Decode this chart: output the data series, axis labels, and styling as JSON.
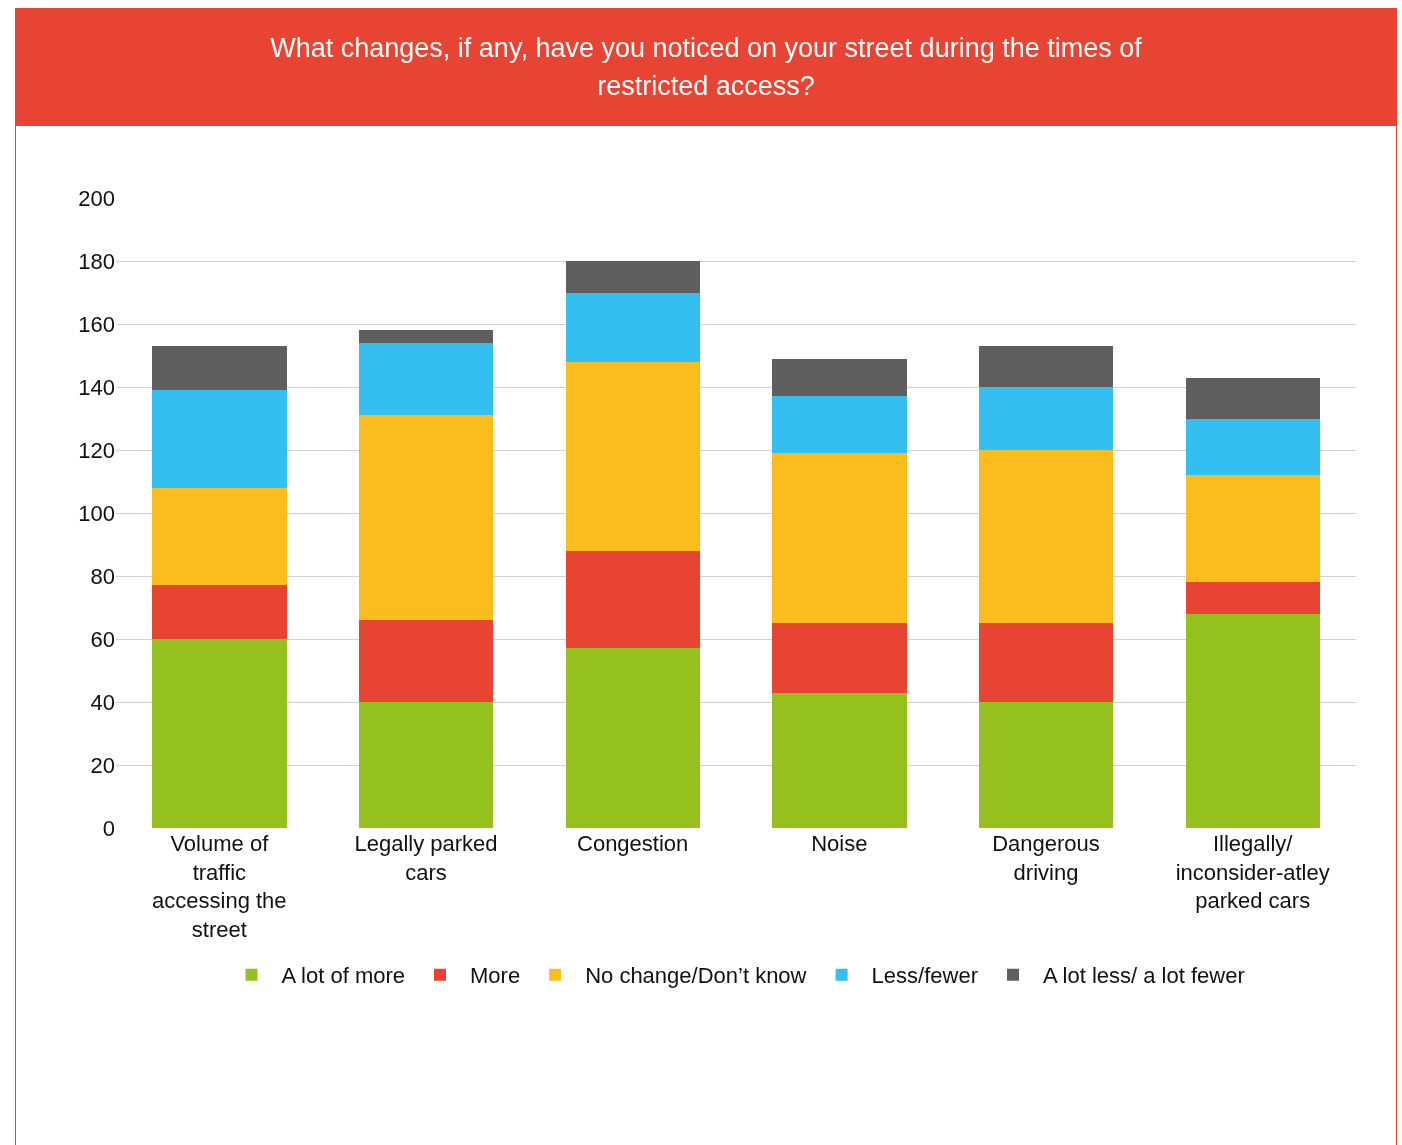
{
  "chart_data": {
    "type": "bar",
    "stacked": true,
    "title": "What changes, if any, have you noticed on your street during the times of restricted access?",
    "categories": [
      "Volume of traffic accessing the street",
      "Legally parked cars",
      "Congestion",
      "Noise",
      "Dangerous driving",
      "Illegally/ inconsider-atley parked cars"
    ],
    "series": [
      {
        "name": "A lot of more",
        "color": "#95c11f",
        "values": [
          60,
          40,
          57,
          43,
          40,
          68
        ]
      },
      {
        "name": "More",
        "color": "#e84434",
        "values": [
          17,
          26,
          31,
          22,
          25,
          10
        ]
      },
      {
        "name": "No change/Don’t know",
        "color": "#fbbd1e",
        "values": [
          31,
          65,
          60,
          54,
          55,
          34
        ]
      },
      {
        "name": "Less/fewer",
        "color": "#33bff0",
        "values": [
          31,
          23,
          22,
          18,
          20,
          18
        ]
      },
      {
        "name": "A lot less/ a lot fewer",
        "color": "#5f5f5f",
        "values": [
          14,
          4,
          10,
          12,
          13,
          13
        ]
      }
    ],
    "ylim": [
      0,
      200
    ],
    "yticks": [
      0,
      20,
      40,
      60,
      80,
      100,
      120,
      140,
      160,
      180,
      200
    ],
    "grid": "y",
    "legend": "bottom"
  }
}
